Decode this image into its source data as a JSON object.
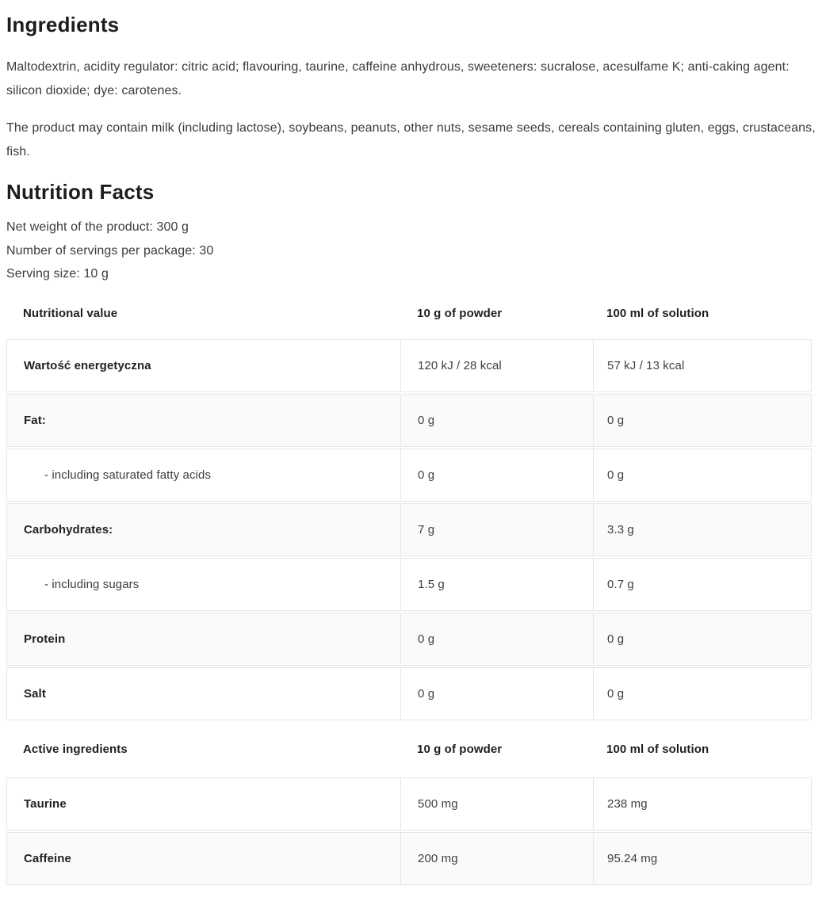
{
  "colors": {
    "heading": "#1d1d1d",
    "body_text": "#3b3b3b",
    "table_border": "#e6e6e6",
    "alt_row_bg": "#fafafa"
  },
  "ingredients": {
    "title": "Ingredients",
    "description": "Maltodextrin, acidity regulator: citric acid; flavouring, taurine, caffeine anhydrous, sweeteners: sucralose, acesulfame K; anti-caking agent: silicon dioxide; dye: carotenes.",
    "allergens": "The product may contain milk (including lactose), soybeans, peanuts, other nuts, sesame seeds, cereals containing gluten, eggs, crustaceans, fish."
  },
  "nutrition": {
    "title": "Nutrition Facts",
    "net_weight": "Net weight of the product: 300 g",
    "servings": "Number of servings per package: 30",
    "serving_size": "Serving size: 10 g",
    "table1": {
      "headers": [
        "Nutritional value",
        "10 g of powder",
        "100 ml of solution"
      ],
      "rows": [
        {
          "label": "Wartość energetyczna",
          "powder": "120 kJ / 28 kcal",
          "solution": "57 kJ / 13 kcal"
        },
        {
          "label": "Fat:",
          "powder": "0 g",
          "solution": "0 g"
        },
        {
          "label": "- including saturated fatty acids",
          "powder": "0 g",
          "solution": "0 g"
        },
        {
          "label": "Carbohydrates:",
          "powder": "7 g",
          "solution": "3.3 g"
        },
        {
          "label": "- including sugars",
          "powder": "1.5 g",
          "solution": "0.7 g"
        },
        {
          "label": "Protein",
          "powder": "0 g",
          "solution": "0 g"
        },
        {
          "label": "Salt",
          "powder": "0 g",
          "solution": "0 g"
        }
      ]
    },
    "table2": {
      "headers": [
        "Active ingredients",
        "10 g of powder",
        "100 ml of solution"
      ],
      "rows": [
        {
          "label": "Taurine",
          "powder": "500 mg",
          "solution": "238 mg"
        },
        {
          "label": "Caffeine",
          "powder": "200 mg",
          "solution": "95.24 mg"
        }
      ]
    }
  }
}
